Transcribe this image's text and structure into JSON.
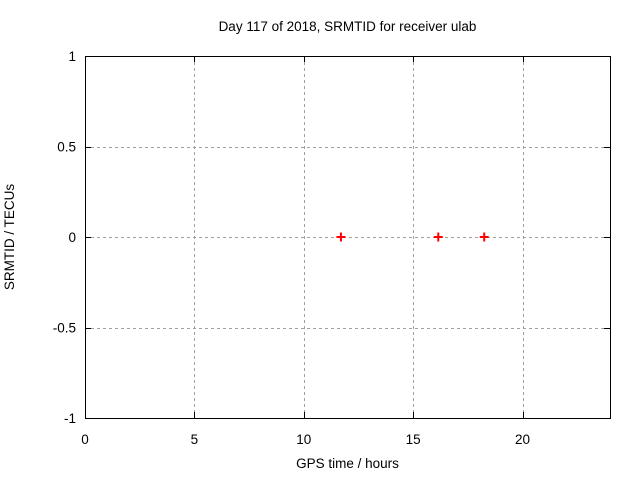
{
  "chart_data": {
    "type": "scatter",
    "title": "Day 117 of 2018, SRMTID for receiver ulab",
    "xlabel": "GPS time / hours",
    "ylabel": "SRMTID / TECUs",
    "xlim": [
      0,
      24
    ],
    "ylim": [
      -1,
      1
    ],
    "xticks": [
      0,
      5,
      10,
      15,
      20
    ],
    "xtick_labels": [
      "0",
      "5",
      "10",
      "15",
      "20"
    ],
    "yticks": [
      -1,
      -0.5,
      0,
      0.5,
      1
    ],
    "ytick_labels": [
      "-1",
      "-0.5",
      "0",
      "0.5",
      "1"
    ],
    "grid": true,
    "grid_style": "dashed",
    "legend": "none",
    "series": [
      {
        "name": "SRMTID",
        "marker": "plus",
        "color": "#ff0000",
        "points": [
          [
            11.7,
            0
          ],
          [
            16.15,
            0
          ],
          [
            18.25,
            0
          ]
        ]
      }
    ],
    "colors": {
      "background": "#ffffff",
      "border": "#000000",
      "grid": "#a0a0a0",
      "text": "#000000",
      "marker": "#ff0000"
    }
  }
}
